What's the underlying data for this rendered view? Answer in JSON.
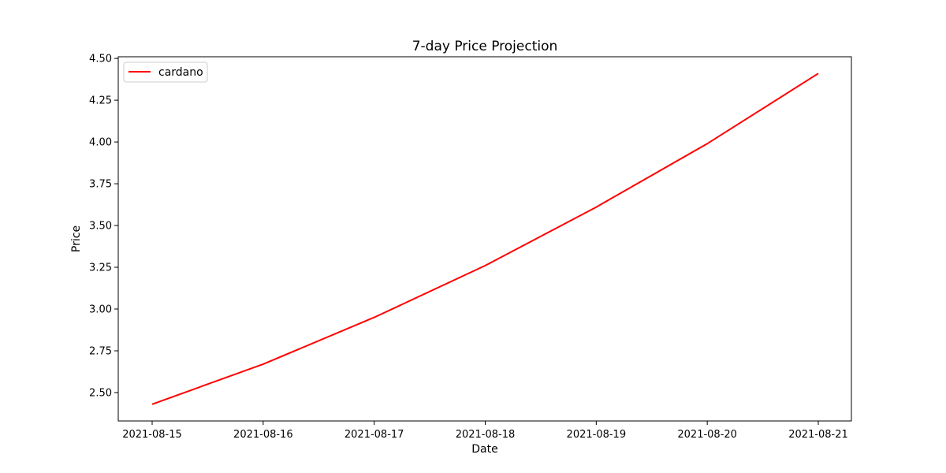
{
  "chart_data": {
    "type": "line",
    "title": "7-day Price Projection",
    "xlabel": "Date",
    "ylabel": "Price",
    "categories": [
      "2021-08-15",
      "2021-08-16",
      "2021-08-17",
      "2021-08-18",
      "2021-08-19",
      "2021-08-20",
      "2021-08-21"
    ],
    "series": [
      {
        "name": "cardano",
        "color": "#ff0000",
        "values": [
          2.43,
          2.67,
          2.95,
          3.26,
          3.61,
          3.99,
          4.41
        ]
      }
    ],
    "ylim": [
      2.33,
      4.51
    ],
    "yticks": [
      "2.50",
      "2.75",
      "3.00",
      "3.25",
      "3.50",
      "3.75",
      "4.00",
      "4.25",
      "4.50"
    ],
    "grid": false,
    "legend_position": "top-left"
  }
}
